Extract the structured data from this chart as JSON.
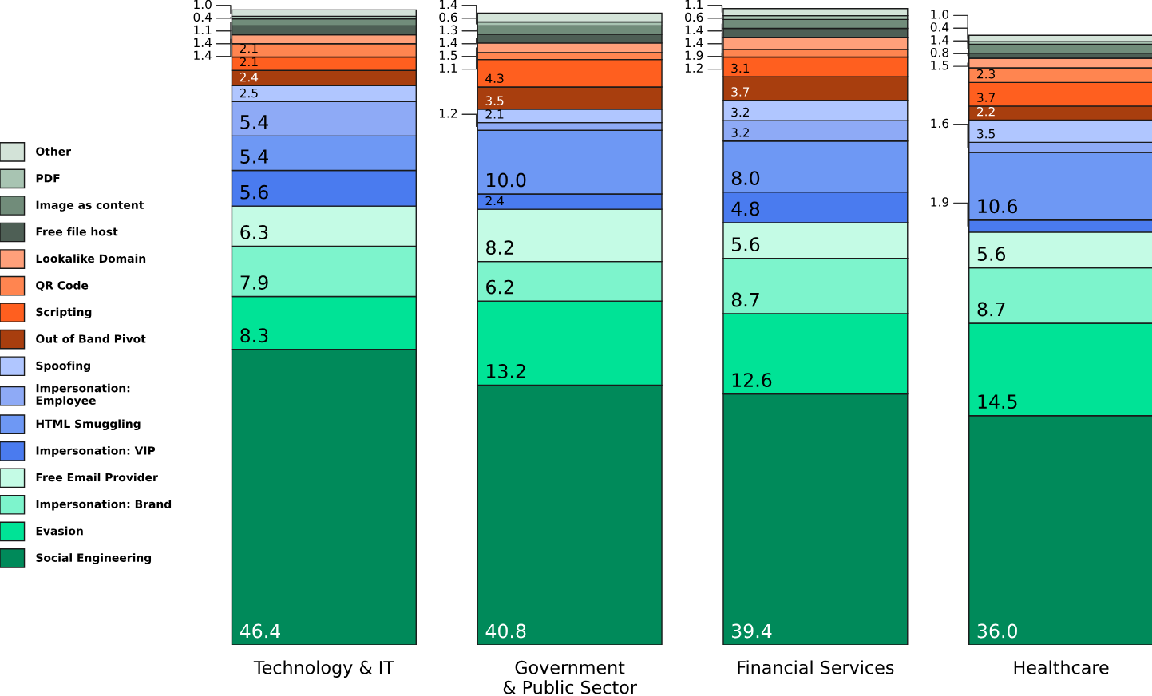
{
  "chart_data": {
    "type": "bar",
    "stacked": true,
    "categories": [
      "Technology & IT",
      "Government\n& Public Sector",
      "Financial Services",
      "Healthcare"
    ],
    "ylim": [
      0,
      100
    ],
    "tick_labels": "x",
    "grid": false,
    "legend": "left",
    "series": [
      {
        "name": "Social Engineering",
        "color": "#008a5a",
        "values": [
          46.4,
          40.8,
          39.4,
          36.0
        ],
        "value_labels": [
          "46.4",
          "40.8",
          "39.4",
          "36.0"
        ]
      },
      {
        "name": "Evasion",
        "color": "#00e396",
        "values": [
          8.3,
          13.2,
          12.6,
          14.5
        ],
        "value_labels": [
          "8.3",
          "13.2",
          "12.6",
          "14.5"
        ]
      },
      {
        "name": "Impersonation: Brand",
        "color": "#7df4cc",
        "values": [
          7.9,
          6.2,
          8.7,
          8.7
        ],
        "value_labels": [
          "7.9",
          "6.2",
          "8.7",
          "8.7"
        ]
      },
      {
        "name": "Free Email Provider",
        "color": "#c4fbe5",
        "values": [
          6.3,
          8.2,
          5.6,
          5.6
        ],
        "value_labels": [
          "6.3",
          "8.2",
          "5.6",
          "5.6"
        ]
      },
      {
        "name": "Impersonation: VIP",
        "color": "#4a7bef",
        "values": [
          5.6,
          2.4,
          4.8,
          1.9
        ],
        "value_labels": [
          "5.6",
          "2.4",
          "4.8",
          "1.9"
        ]
      },
      {
        "name": "HTML Smuggling",
        "color": "#6e98f4",
        "values": [
          5.4,
          10.0,
          8.0,
          10.6
        ],
        "value_labels": [
          "5.4",
          "10.0",
          "8.0",
          "10.6"
        ]
      },
      {
        "name": "Impersonation:\nEmployee",
        "color": "#8eaaf6",
        "values": [
          5.4,
          1.2,
          3.2,
          1.6
        ],
        "value_labels": [
          "5.4",
          "1.2",
          "3.2",
          "1.6"
        ]
      },
      {
        "name": "Spoofing",
        "color": "#b0c6ff",
        "values": [
          2.5,
          2.1,
          3.2,
          3.5
        ],
        "value_labels": [
          "2.5",
          "2.1",
          "3.2",
          "3.5"
        ]
      },
      {
        "name": "Out of Band Pivot",
        "color": "#a83e0e",
        "values": [
          2.4,
          3.5,
          3.7,
          2.2
        ],
        "value_labels": [
          "2.4",
          "3.5",
          "3.7",
          "2.2"
        ]
      },
      {
        "name": "Scripting",
        "color": "#ff5f1f",
        "values": [
          2.1,
          4.3,
          3.1,
          3.7
        ],
        "value_labels": [
          "2.1",
          "4.3",
          "3.1",
          "3.7"
        ]
      },
      {
        "name": "QR Code",
        "color": "#ff8550",
        "values": [
          2.1,
          1.1,
          1.2,
          2.3
        ],
        "value_labels": [
          "2.1",
          "1.1",
          "1.2",
          "2.3"
        ]
      },
      {
        "name": "Lookalike Domain",
        "color": "#ffa07a",
        "values": [
          1.4,
          1.5,
          1.9,
          1.5
        ],
        "value_labels": [
          "1.4",
          "1.5",
          "1.9",
          "1.5"
        ]
      },
      {
        "name": "Free file host",
        "color": "#4e5f55",
        "values": [
          1.4,
          1.4,
          1.4,
          0.8
        ],
        "value_labels": [
          "1.4",
          "1.4",
          "1.4",
          "0.8"
        ]
      },
      {
        "name": "Image as content",
        "color": "#718c7a",
        "values": [
          1.1,
          1.3,
          1.4,
          1.4
        ],
        "value_labels": [
          "1.1",
          "1.3",
          "1.4",
          "1.4"
        ]
      },
      {
        "name": "PDF",
        "color": "#a8c4b2",
        "values": [
          0.4,
          0.6,
          0.6,
          0.4
        ],
        "value_labels": [
          "0.4",
          "0.6",
          "0.6",
          "0.4"
        ]
      },
      {
        "name": "Other",
        "color": "#d3e3d8",
        "values": [
          1.0,
          1.4,
          1.1,
          1.0
        ],
        "value_labels": [
          "1.0",
          "1.4",
          "1.1",
          "1.0"
        ]
      }
    ]
  }
}
